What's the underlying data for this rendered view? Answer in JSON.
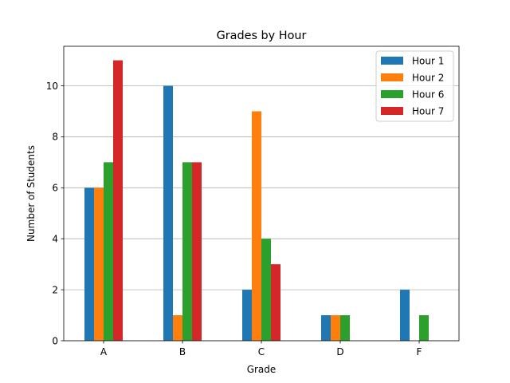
{
  "chart_data": {
    "type": "bar",
    "title": "Grades by Hour",
    "xlabel": "Grade",
    "ylabel": "Number of Students",
    "categories": [
      "A",
      "B",
      "C",
      "D",
      "F"
    ],
    "series": [
      {
        "name": "Hour 1",
        "color": "#1f77b4",
        "values": [
          6,
          10,
          2,
          1,
          2
        ]
      },
      {
        "name": "Hour 2",
        "color": "#ff7f0e",
        "values": [
          6,
          1,
          9,
          1,
          0
        ]
      },
      {
        "name": "Hour 6",
        "color": "#2ca02c",
        "values": [
          7,
          7,
          4,
          1,
          1
        ]
      },
      {
        "name": "Hour 7",
        "color": "#d62728",
        "values": [
          11,
          7,
          3,
          0,
          0
        ]
      }
    ],
    "ylim": [
      0,
      11.55
    ],
    "yticks": [
      0,
      2,
      4,
      6,
      8,
      10
    ],
    "grid": "y",
    "legend": "top-right"
  }
}
